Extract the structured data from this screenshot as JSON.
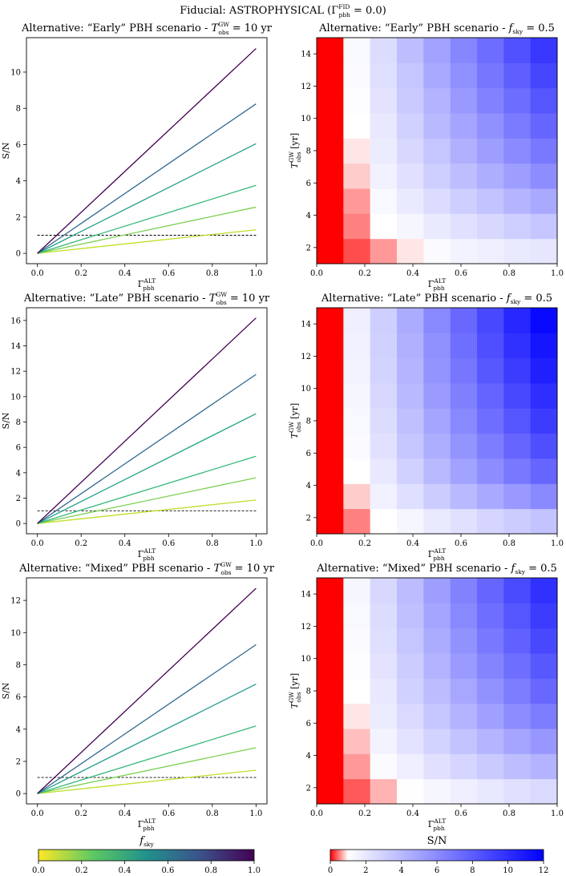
{
  "figure_title": "Fiducial: ASTROPHYSICAL (Γᶠᴵᴰpbh = 0.0)",
  "figure_title_parts": {
    "prefix": "Fiducial: ASTROPHYSICAL (Γ",
    "sup": "FID",
    "sub": "pbh",
    "suffix": " = 0.0)"
  },
  "labels": {
    "sn": "S/N",
    "gamma": "Γ",
    "gamma_sup": "ALT",
    "gamma_sub": "pbh",
    "tobs": "T",
    "tobs_sup": "GW",
    "tobs_sub": "obs",
    "tobs_unit": " [yr]",
    "fsky": "f",
    "fsky_sub": "sky"
  },
  "colors": {
    "line_colors": [
      "#bddf26",
      "#7ad151",
      "#35b779",
      "#1f9e89",
      "#31688e",
      "#440154"
    ],
    "reference_line": "#000000",
    "heatmap_low": "#ff0000",
    "heatmap_mid": "#ffffff",
    "heatmap_high": "#0000ff"
  },
  "chart_data": [
    {
      "type": "line",
      "title": "Alternative: “Early” PBH scenario - Tᵒᵇˢ = 10 yr",
      "title_prefix": "Alternative: “Early” PBH scenario - ",
      "title_suffix": " = 10 yr",
      "xlabel": "Γ ALT pbh",
      "ylabel": "S/N",
      "xlim": [
        -0.05,
        1.05
      ],
      "ylim": [
        -0.57,
        11.9
      ],
      "xticks": [
        0.0,
        0.2,
        0.4,
        0.6,
        0.8,
        1.0
      ],
      "xtick_labels": [
        "0.0",
        "0.2",
        "0.4",
        "0.6",
        "0.8",
        "1.0"
      ],
      "yticks": [
        0,
        2,
        4,
        6,
        8,
        10
      ],
      "ytick_labels": [
        "0",
        "2",
        "4",
        "6",
        "8",
        "10"
      ],
      "reference_line": 1,
      "x": [
        0.0,
        1.0
      ],
      "series": [
        {
          "name": "f_sky = 0.1",
          "values": [
            0,
            1.3
          ]
        },
        {
          "name": "f_sky = 0.2",
          "values": [
            0,
            2.55
          ]
        },
        {
          "name": "f_sky = 0.3",
          "values": [
            0,
            3.75
          ]
        },
        {
          "name": "f_sky = 0.5",
          "values": [
            0,
            6.05
          ]
        },
        {
          "name": "f_sky = 0.7",
          "values": [
            0,
            8.25
          ]
        },
        {
          "name": "f_sky = 1.0",
          "values": [
            0,
            11.3
          ]
        }
      ]
    },
    {
      "type": "heatmap",
      "title": "Alternative: “Early” PBH scenario - f_sky = 0.5",
      "title_prefix": "Alternative: “Early” PBH scenario - ",
      "title_suffix": " = 0.5",
      "xlabel": "Γ ALT pbh",
      "ylabel": "T GW obs [yr]",
      "xlim": [
        0,
        1.0
      ],
      "ylim": [
        1,
        15
      ],
      "xticks": [
        0.0,
        0.2,
        0.4,
        0.6,
        0.8,
        1.0
      ],
      "xtick_labels": [
        "0.0",
        "0.2",
        "0.4",
        "0.6",
        "0.8",
        "1.0"
      ],
      "yticks": [
        2,
        4,
        6,
        8,
        10,
        12,
        14
      ],
      "ytick_labels": [
        "2",
        "4",
        "6",
        "8",
        "10",
        "12",
        "14"
      ],
      "vmin": 0,
      "vmax": 12,
      "values": [
        [
          0,
          0.3,
          0.6,
          0.9,
          1.2,
          1.5,
          1.7,
          1.9,
          2.1
        ],
        [
          0,
          0.5,
          1.0,
          1.4,
          1.9,
          2.3,
          2.7,
          3.1,
          3.5
        ],
        [
          0,
          0.6,
          1.3,
          1.9,
          2.5,
          3.1,
          3.6,
          4.2,
          4.7
        ],
        [
          0,
          0.8,
          1.6,
          2.3,
          3.1,
          3.8,
          4.5,
          5.2,
          5.9
        ],
        [
          0,
          0.9,
          1.8,
          2.7,
          3.5,
          4.4,
          5.2,
          6.0,
          6.8
        ],
        [
          0,
          1.0,
          2.0,
          3.0,
          4.0,
          4.9,
          5.8,
          6.7,
          7.6
        ],
        [
          0,
          1.1,
          2.2,
          3.3,
          4.3,
          5.4,
          6.4,
          7.3,
          8.3
        ],
        [
          0,
          1.2,
          2.4,
          3.5,
          4.7,
          5.8,
          6.9,
          7.9,
          9.0
        ],
        [
          0,
          1.3,
          2.5,
          3.8,
          5.0,
          6.2,
          7.3,
          8.5,
          9.6
        ]
      ]
    },
    {
      "type": "line",
      "title": "Alternative: “Late” PBH scenario - T = 10 yr",
      "title_prefix": "Alternative: “Late” PBH scenario - ",
      "title_suffix": " = 10 yr",
      "xlabel": "Γ ALT pbh",
      "ylabel": "S/N",
      "xlim": [
        -0.05,
        1.05
      ],
      "ylim": [
        -0.81,
        17.0
      ],
      "xticks": [
        0.0,
        0.2,
        0.4,
        0.6,
        0.8,
        1.0
      ],
      "xtick_labels": [
        "0.0",
        "0.2",
        "0.4",
        "0.6",
        "0.8",
        "1.0"
      ],
      "yticks": [
        0,
        2,
        4,
        6,
        8,
        10,
        12,
        14,
        16
      ],
      "ytick_labels": [
        "0",
        "2",
        "4",
        "6",
        "8",
        "10",
        "12",
        "14",
        "16"
      ],
      "reference_line": 1,
      "x": [
        0.0,
        1.0
      ],
      "series": [
        {
          "name": "f_sky = 0.1",
          "values": [
            0,
            1.85
          ]
        },
        {
          "name": "f_sky = 0.2",
          "values": [
            0,
            3.6
          ]
        },
        {
          "name": "f_sky = 0.3",
          "values": [
            0,
            5.3
          ]
        },
        {
          "name": "f_sky = 0.5",
          "values": [
            0,
            8.65
          ]
        },
        {
          "name": "f_sky = 0.7",
          "values": [
            0,
            11.75
          ]
        },
        {
          "name": "f_sky = 1.0",
          "values": [
            0,
            16.2
          ]
        }
      ]
    },
    {
      "type": "heatmap",
      "title": "Alternative: “Late” PBH scenario - f_sky = 0.5",
      "title_prefix": "Alternative: “Late” PBH scenario - ",
      "title_suffix": " = 0.5",
      "xlabel": "Γ ALT pbh",
      "ylabel": "T GW obs [yr]",
      "xlim": [
        0,
        1.0
      ],
      "ylim": [
        1,
        15
      ],
      "xticks": [
        0.0,
        0.2,
        0.4,
        0.6,
        0.8,
        1.0
      ],
      "xtick_labels": [
        "0.0",
        "0.2",
        "0.4",
        "0.6",
        "0.8",
        "1.0"
      ],
      "yticks": [
        2,
        4,
        6,
        8,
        10,
        12,
        14
      ],
      "ytick_labels": [
        "2",
        "4",
        "6",
        "8",
        "10",
        "12",
        "14"
      ],
      "vmin": 0,
      "vmax": 12,
      "values": [
        [
          0,
          0.5,
          1.0,
          1.4,
          1.9,
          2.3,
          2.8,
          3.2,
          3.6
        ],
        [
          0,
          0.8,
          1.6,
          2.4,
          3.2,
          4.0,
          4.7,
          5.4,
          6.1
        ],
        [
          0,
          1.0,
          2.0,
          3.0,
          4.0,
          5.0,
          5.9,
          6.8,
          7.6
        ],
        [
          0,
          1.2,
          2.3,
          3.4,
          4.5,
          5.6,
          6.6,
          7.6,
          8.6
        ],
        [
          0,
          1.3,
          2.5,
          3.7,
          4.9,
          6.1,
          7.2,
          8.3,
          9.4
        ],
        [
          0,
          1.4,
          2.7,
          4.0,
          5.3,
          6.5,
          7.7,
          8.9,
          10.0
        ],
        [
          0,
          1.5,
          2.9,
          4.2,
          5.6,
          6.9,
          8.2,
          9.4,
          10.6
        ],
        [
          0,
          1.6,
          3.0,
          4.4,
          5.8,
          7.2,
          8.6,
          9.9,
          11.1
        ],
        [
          0,
          1.7,
          3.1,
          4.6,
          6.1,
          7.5,
          8.9,
          10.3,
          11.6
        ]
      ]
    },
    {
      "type": "line",
      "title": "Alternative: “Mixed” PBH scenario - T = 10 yr",
      "title_prefix": "Alternative: “Mixed” PBH scenario - ",
      "title_suffix": " = 10 yr",
      "xlabel": "Γ ALT pbh",
      "ylabel": "S/N",
      "xlim": [
        -0.05,
        1.05
      ],
      "ylim": [
        -0.64,
        13.4
      ],
      "xticks": [
        0.0,
        0.2,
        0.4,
        0.6,
        0.8,
        1.0
      ],
      "xtick_labels": [
        "0.0",
        "0.2",
        "0.4",
        "0.6",
        "0.8",
        "1.0"
      ],
      "yticks": [
        0,
        2,
        4,
        6,
        8,
        10,
        12
      ],
      "ytick_labels": [
        "0",
        "2",
        "4",
        "6",
        "8",
        "10",
        "12"
      ],
      "reference_line": 1,
      "x": [
        0.0,
        1.0
      ],
      "series": [
        {
          "name": "f_sky = 0.1",
          "values": [
            0,
            1.45
          ]
        },
        {
          "name": "f_sky = 0.2",
          "values": [
            0,
            2.85
          ]
        },
        {
          "name": "f_sky = 0.3",
          "values": [
            0,
            4.2
          ]
        },
        {
          "name": "f_sky = 0.5",
          "values": [
            0,
            6.8
          ]
        },
        {
          "name": "f_sky = 0.7",
          "values": [
            0,
            9.25
          ]
        },
        {
          "name": "f_sky = 1.0",
          "values": [
            0,
            12.75
          ]
        }
      ]
    },
    {
      "type": "heatmap",
      "title": "Alternative: “Mixed” PBH scenario - f_sky = 0.5",
      "title_prefix": "Alternative: “Mixed” PBH scenario - ",
      "title_suffix": " = 0.5",
      "xlabel": "Γ ALT pbh",
      "ylabel": "T GW obs [yr]",
      "xlim": [
        0,
        1.0
      ],
      "ylim": [
        1,
        15
      ],
      "xticks": [
        0.0,
        0.2,
        0.4,
        0.6,
        0.8,
        1.0
      ],
      "xtick_labels": [
        "0.0",
        "0.2",
        "0.4",
        "0.6",
        "0.8",
        "1.0"
      ],
      "yticks": [
        2,
        4,
        6,
        8,
        10,
        12,
        14
      ],
      "ytick_labels": [
        "2",
        "4",
        "6",
        "8",
        "10",
        "12",
        "14"
      ],
      "vmin": 0,
      "vmax": 12,
      "values": [
        [
          0,
          0.35,
          0.7,
          1.05,
          1.4,
          1.7,
          2.0,
          2.3,
          2.6
        ],
        [
          0,
          0.6,
          1.2,
          1.7,
          2.3,
          2.8,
          3.3,
          3.8,
          4.3
        ],
        [
          0,
          0.75,
          1.5,
          2.2,
          2.9,
          3.6,
          4.2,
          4.9,
          5.5
        ],
        [
          0,
          0.9,
          1.8,
          2.6,
          3.5,
          4.3,
          5.1,
          5.9,
          6.6
        ],
        [
          0,
          1.0,
          2.0,
          3.0,
          3.9,
          4.8,
          5.7,
          6.6,
          7.5
        ],
        [
          0,
          1.1,
          2.2,
          3.2,
          4.3,
          5.3,
          6.3,
          7.2,
          8.2
        ],
        [
          0,
          1.2,
          2.4,
          3.5,
          4.6,
          5.7,
          6.8,
          7.8,
          8.9
        ],
        [
          0,
          1.3,
          2.5,
          3.7,
          4.9,
          6.1,
          7.2,
          8.3,
          9.4
        ],
        [
          0,
          1.4,
          2.7,
          3.9,
          5.2,
          6.4,
          7.6,
          8.8,
          9.9
        ]
      ]
    }
  ],
  "colorbars": {
    "fsky": {
      "label": "f_sky",
      "range": [
        0.0,
        1.0
      ],
      "ticks": [
        0.0,
        0.2,
        0.4,
        0.6,
        0.8,
        1.0
      ],
      "tick_labels": [
        "0.0",
        "0.2",
        "0.4",
        "0.6",
        "0.8",
        "1.0"
      ]
    },
    "sn": {
      "label": "S/N",
      "range": [
        0,
        12
      ],
      "ticks": [
        0,
        2,
        4,
        6,
        8,
        10,
        12
      ],
      "tick_labels": [
        "0",
        "2",
        "4",
        "6",
        "8",
        "10",
        "12"
      ]
    }
  }
}
